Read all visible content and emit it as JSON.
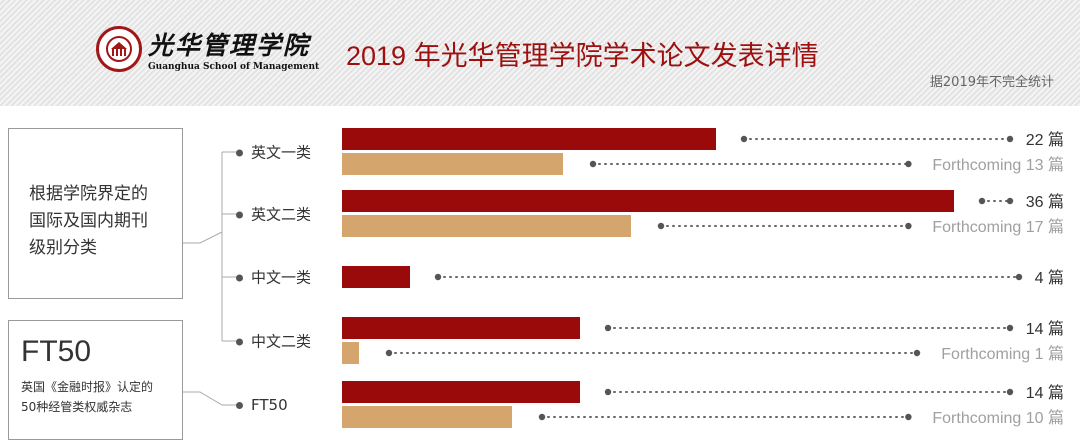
{
  "header": {
    "logo_cn": "光华管理学院",
    "logo_en": "Guanghua School of Management",
    "title": "2019 年光华管理学院学术论文发表详情",
    "note": "据2019年不完全统计"
  },
  "left_panel": {
    "classification_text": "根据学院界定的\n国际及国内期刊\n级别分类",
    "ft50_title": "FT50",
    "ft50_desc": "英国《金融时报》认定的\n50种经管类权威杂志"
  },
  "colors": {
    "published": "#9b0a0a",
    "forthcoming": "#d4a66e",
    "published_text": "#333333",
    "forthcoming_text": "#a0a0a0",
    "banner_stripe": "#e3e3e3"
  },
  "chart_data": {
    "type": "bar",
    "orientation": "horizontal",
    "categories": [
      "英文一类",
      "英文二类",
      "中文一类",
      "中文二类",
      "FT50"
    ],
    "series": [
      {
        "name": "",
        "values": [
          22,
          36,
          4,
          14,
          14
        ]
      },
      {
        "name": "Forthcoming",
        "values": [
          13,
          17,
          null,
          1,
          10
        ]
      }
    ],
    "value_labels": [
      {
        "published": "22 篇",
        "forthcoming": "Forthcoming 13 篇"
      },
      {
        "published": "36 篇",
        "forthcoming": "Forthcoming 17 篇"
      },
      {
        "published": "4 篇",
        "forthcoming": null
      },
      {
        "published": "14 篇",
        "forthcoming": "Forthcoming 1 篇"
      },
      {
        "published": "14 篇",
        "forthcoming": "Forthcoming 10 篇"
      }
    ],
    "xlim": [
      0,
      36
    ],
    "unit": "篇"
  }
}
